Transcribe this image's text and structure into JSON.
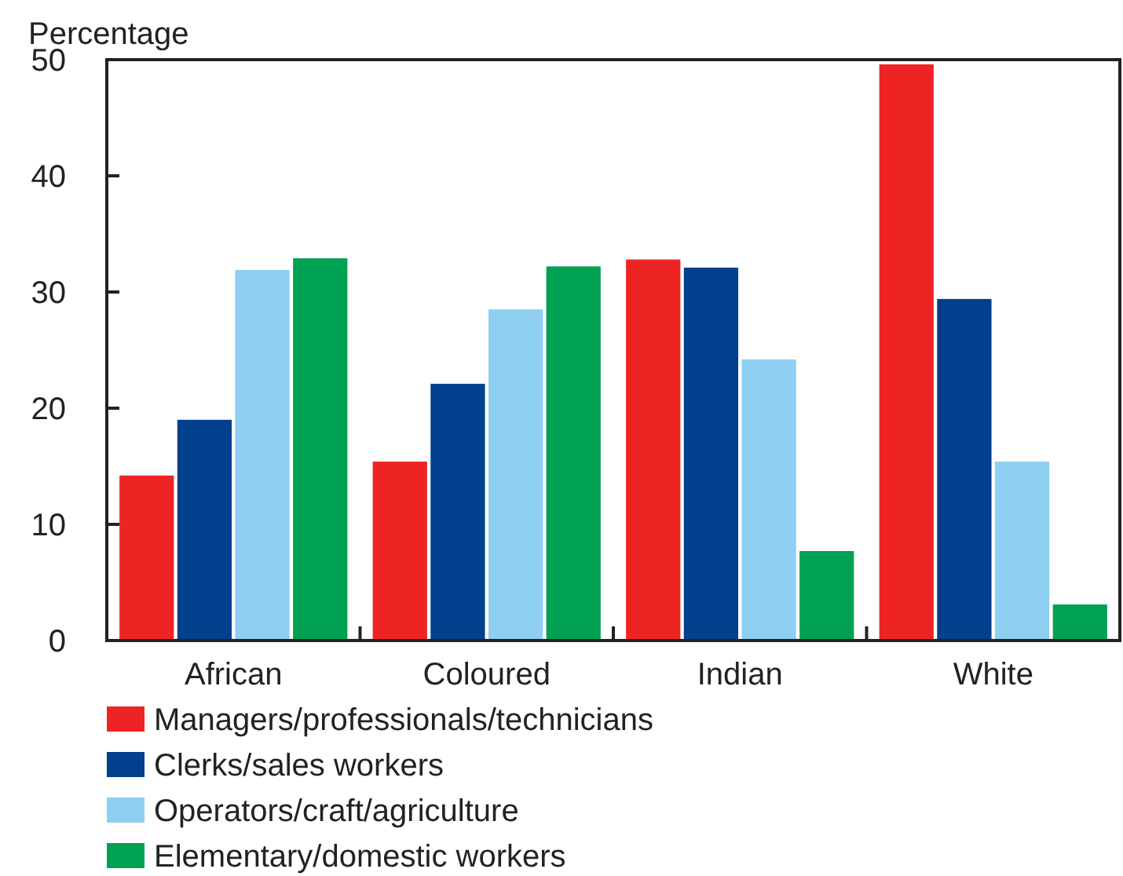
{
  "chart_data": {
    "type": "bar",
    "ylabel": "Percentage",
    "categories": [
      "African",
      "Coloured",
      "Indian",
      "White"
    ],
    "series": [
      {
        "name": "Managers/professionals/technicians",
        "color": "#ee2424",
        "values": [
          14.2,
          15.4,
          32.8,
          49.6
        ]
      },
      {
        "name": "Clerks/sales workers",
        "color": "#00408c",
        "values": [
          19.0,
          22.1,
          32.1,
          29.4
        ]
      },
      {
        "name": "Operators/craft/agriculture",
        "color": "#8fcff2",
        "values": [
          31.9,
          28.5,
          24.2,
          15.4
        ]
      },
      {
        "name": "Elementary/domestic workers",
        "color": "#00a152",
        "values": [
          32.9,
          32.2,
          7.7,
          3.1
        ]
      }
    ],
    "ylim": [
      0,
      50
    ],
    "yticks": [
      0,
      10,
      20,
      30,
      40,
      50
    ],
    "grid": false,
    "legend": "bottom"
  }
}
